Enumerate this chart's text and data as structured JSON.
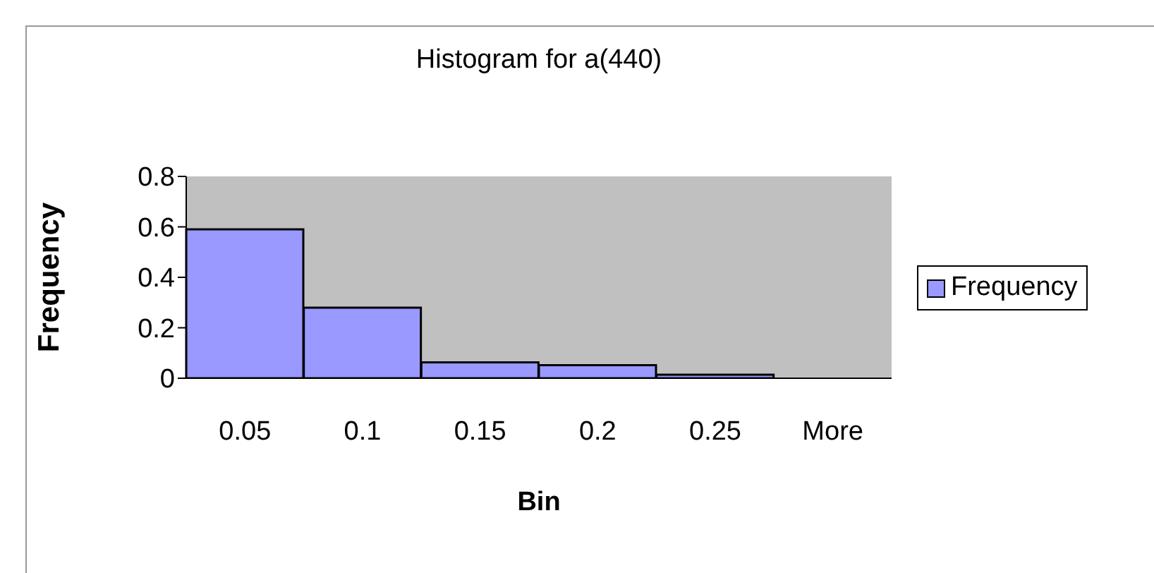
{
  "chart_data": {
    "type": "bar",
    "title": "Histogram for a(440)",
    "xlabel": "Bin",
    "ylabel": "Frequency",
    "categories": [
      "0.05",
      "0.1",
      "0.15",
      "0.2",
      "0.25",
      "More"
    ],
    "series": [
      {
        "name": "Frequency",
        "color": "#9999ff",
        "values": [
          0.59,
          0.28,
          0.063,
          0.052,
          0.014,
          0
        ]
      }
    ],
    "ylim": [
      0,
      0.8
    ],
    "yticks": [
      0,
      0.2,
      0.4,
      0.6,
      0.8
    ],
    "grid": false,
    "legend": "right"
  }
}
